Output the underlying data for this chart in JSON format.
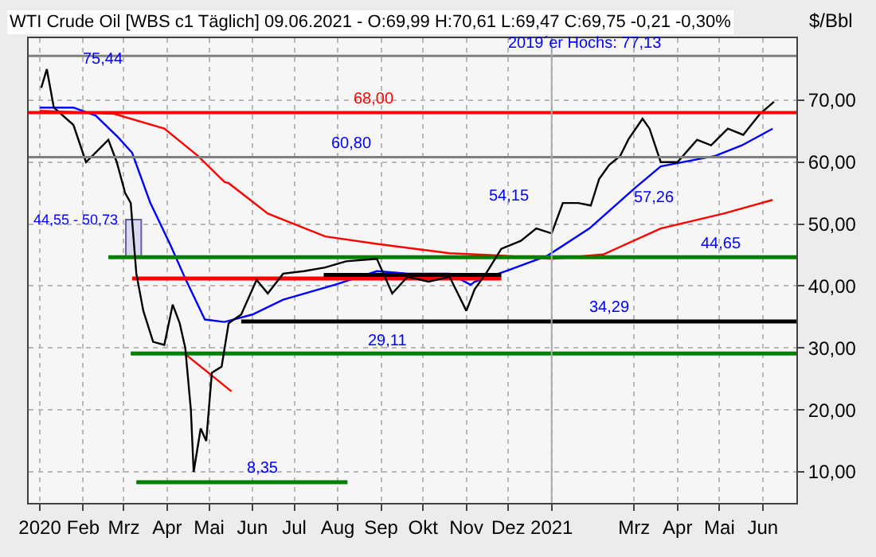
{
  "chart_data": {
    "type": "line",
    "title": "WTI Crude Oil [WBS c1 Täglich] 09.06.2021 - O:69,99 H:70,61 L:69,47 C:69,75 -0,21 -0,30%",
    "ylabel": "$/Bbl",
    "xlim": [
      "2019-12-24",
      "2021-06-25"
    ],
    "xticks": [
      {
        "value": "2020-01-01",
        "label": "2020"
      },
      {
        "value": "2020-02-01",
        "label": "Feb"
      },
      {
        "value": "2020-03-01",
        "label": "Mrz"
      },
      {
        "value": "2020-04-01",
        "label": "Apr"
      },
      {
        "value": "2020-05-01",
        "label": "Mai"
      },
      {
        "value": "2020-06-01",
        "label": "Jun"
      },
      {
        "value": "2020-07-01",
        "label": "Jul"
      },
      {
        "value": "2020-08-01",
        "label": "Aug"
      },
      {
        "value": "2020-09-01",
        "label": "Sep"
      },
      {
        "value": "2020-10-01",
        "label": "Okt"
      },
      {
        "value": "2020-11-01",
        "label": "Nov"
      },
      {
        "value": "2020-12-01",
        "label": "Dez"
      },
      {
        "value": "2021-01-01",
        "label": "2021"
      },
      {
        "value": "2021-03-01",
        "label": "Mrz"
      },
      {
        "value": "2021-04-01",
        "label": "Apr"
      },
      {
        "value": "2021-05-01",
        "label": "Mai"
      },
      {
        "value": "2021-06-01",
        "label": "Jun"
      }
    ],
    "ylim": [
      5,
      80
    ],
    "yticks": [
      {
        "value": 10,
        "label": "10,00"
      },
      {
        "value": 20,
        "label": "20,00"
      },
      {
        "value": 30,
        "label": "30,00"
      },
      {
        "value": 40,
        "label": "40,00"
      },
      {
        "value": 50,
        "label": "50,00"
      },
      {
        "value": 60,
        "label": "60,00"
      },
      {
        "value": 70,
        "label": "70,00"
      }
    ],
    "grid": true,
    "series": [
      {
        "type": "bar",
        "color": "#d8d8f0",
        "x": [
          "2020-03-08"
        ],
        "base": [
          44.55
        ],
        "values": [
          6.18
        ]
      },
      {
        "type": "line",
        "color": "#ff0000",
        "x": [
          "2020-01-01",
          "2020-02-23",
          "2020-03-30",
          "2020-04-23",
          "2020-05-12",
          "2020-05-15",
          "2020-06-12",
          "2020-07-23",
          "2020-08-29",
          "2020-10-20",
          "2020-11-26",
          "2021-01-01",
          "2021-02-07",
          "2021-03-20",
          "2021-05-04",
          "2021-06-08"
        ],
        "values": [
          68.3,
          67.8,
          65.4,
          61.0,
          56.8,
          56.6,
          51.7,
          48.0,
          46.8,
          45.3,
          44.9,
          44.4,
          45.1,
          49.3,
          51.7,
          53.9
        ]
      },
      {
        "type": "line",
        "color": "#0000ff",
        "x": [
          "2020-01-01",
          "2020-01-25",
          "2020-02-10",
          "2020-02-26",
          "2020-03-07",
          "2020-03-20",
          "2020-04-03",
          "2020-04-14",
          "2020-04-28",
          "2020-05-12",
          "2020-06-01",
          "2020-06-23",
          "2020-07-30",
          "2020-08-29",
          "2020-09-20",
          "2020-10-20",
          "2020-11-04",
          "2020-11-07",
          "2020-11-29",
          "2020-12-29",
          "2021-01-28",
          "2021-03-02",
          "2021-03-20",
          "2021-04-28",
          "2021-05-17",
          "2021-06-08"
        ],
        "values": [
          68.8,
          68.8,
          67.5,
          64.0,
          61.5,
          53.4,
          46.8,
          41.2,
          34.6,
          34.2,
          35.4,
          37.8,
          40.2,
          42.4,
          42.0,
          42.0,
          40.2,
          40.7,
          42.4,
          44.9,
          49.3,
          55.9,
          59.3,
          61.0,
          62.7,
          65.4
        ]
      },
      {
        "type": "line",
        "color": "#ff0000",
        "x": [
          "2020-04-14",
          "2020-05-17"
        ],
        "values": [
          29.0,
          23.0
        ]
      },
      {
        "type": "line",
        "color": "#ff0000",
        "x": [
          "2020-03-07",
          "2020-11-26"
        ],
        "values": [
          41.2,
          41.2
        ]
      },
      {
        "type": "line",
        "color": "#000000",
        "x": [
          "2020-07-22",
          "2020-11-26"
        ],
        "values": [
          41.8,
          41.8
        ]
      },
      {
        "type": "line",
        "color": "#008000",
        "x": [
          "2020-02-19",
          "2021-06-25"
        ],
        "values": [
          44.65,
          44.65
        ]
      },
      {
        "type": "line",
        "color": "#008000",
        "x": [
          "2020-03-06",
          "2021-06-25"
        ],
        "values": [
          29.11,
          29.11
        ]
      },
      {
        "type": "line",
        "color": "#000000",
        "x": [
          "2020-05-24",
          "2021-06-25"
        ],
        "values": [
          34.29,
          34.29
        ]
      },
      {
        "type": "line",
        "color": "#008000",
        "x": [
          "2020-03-10",
          "2020-08-08"
        ],
        "values": [
          8.35,
          8.35
        ]
      },
      {
        "color": "#000000",
        "x": [
          "2020-01-02",
          "2020-01-06",
          "2020-01-11",
          "2020-01-25",
          "2020-02-03",
          "2020-02-19",
          "2020-02-25",
          "2020-03-02",
          "2020-03-06",
          "2020-03-10",
          "2020-03-15",
          "2020-03-22",
          "2020-03-30",
          "2020-04-05",
          "2020-04-10",
          "2020-04-14",
          "2020-04-18",
          "2020-04-20",
          "2020-04-25",
          "2020-04-29",
          "2020-05-03",
          "2020-05-10",
          "2020-05-15",
          "2020-05-24",
          "2020-06-04",
          "2020-06-12",
          "2020-06-23",
          "2020-07-08",
          "2020-07-23",
          "2020-08-07",
          "2020-08-29",
          "2020-09-09",
          "2020-09-20",
          "2020-10-05",
          "2020-10-20",
          "2020-11-01",
          "2020-11-07",
          "2020-11-15",
          "2020-11-26",
          "2020-12-10",
          "2020-12-21",
          "2021-01-01",
          "2021-01-09",
          "2021-01-20",
          "2021-01-29",
          "2021-02-04",
          "2021-02-11",
          "2021-02-19",
          "2021-02-25",
          "2021-03-07",
          "2021-03-12",
          "2021-03-20",
          "2021-04-01",
          "2021-04-15",
          "2021-04-25",
          "2021-05-07",
          "2021-05-18",
          "2021-05-30",
          "2021-06-09"
        ],
        "values": [
          72.0,
          75.0,
          68.8,
          66.0,
          60.0,
          63.6,
          60.0,
          55.0,
          53.4,
          42.0,
          36.0,
          31.0,
          30.5,
          37.0,
          34.0,
          30.0,
          20.0,
          10.0,
          17.0,
          15.0,
          26.0,
          27.0,
          34.0,
          35.4,
          41.0,
          38.8,
          42.0,
          42.4,
          43.0,
          44.0,
          44.4,
          38.8,
          41.5,
          40.7,
          41.5,
          36.0,
          39.5,
          42.0,
          46.0,
          47.3,
          49.3,
          48.5,
          53.4,
          53.4,
          53.0,
          57.3,
          59.5,
          61.0,
          63.7,
          67.0,
          65.4,
          60.0,
          60.0,
          63.6,
          62.7,
          65.4,
          64.4,
          67.8,
          69.75
        ]
      }
    ],
    "ref_lines": [
      {
        "axis": "y",
        "value": 77.13,
        "label": "2019´er Hochs: 77,13",
        "color": "#808080"
      },
      {
        "axis": "y",
        "value": 68.0,
        "label": "68,00",
        "color": "#ff0000"
      },
      {
        "axis": "y",
        "value": 60.8,
        "label": "60,80",
        "color": "#808080"
      },
      {
        "axis": "x",
        "value": "2021-01-01",
        "color": "#a0b0a0"
      }
    ],
    "annotations": [
      {
        "text": "75,44",
        "x": "2020-01-07",
        "y": 75.44
      },
      "54,15",
      "57,26",
      {
        "text": "44,65",
        "x": "2021-05-02",
        "y": 44.65
      },
      {
        "text": "34,29",
        "x": "2021-02-11",
        "y": 34.29
      },
      {
        "text": "29,11",
        "x": "2020-09-06",
        "y": 29.11
      },
      {
        "text": "8,35",
        "x": "2020-06-08",
        "y": 8.35
      },
      "44,55 - 50,73"
    ]
  }
}
